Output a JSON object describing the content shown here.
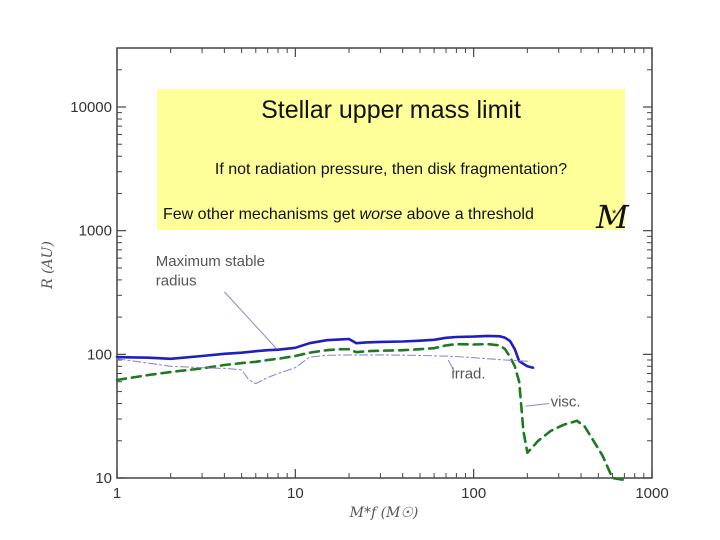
{
  "callout": {
    "title": "Stellar upper mass limit",
    "line1": "If not radiation pressure, then disk fragmentation?",
    "line2_prefix": "Few other mechanisms get ",
    "line2_emph": "worse",
    "line2_suffix": " above a threshold",
    "symbol": "M",
    "symbol_sub": "*"
  },
  "chart_data": {
    "type": "line",
    "title": "",
    "xlabel": "M*f (M☉)",
    "ylabel": "R (AU)",
    "xscale": "log",
    "yscale": "log",
    "xlim": [
      1,
      1000
    ],
    "ylim": [
      10,
      30000
    ],
    "xticks": [
      {
        "value": 1,
        "label": "1"
      },
      {
        "value": 10,
        "label": "10"
      },
      {
        "value": 100,
        "label": "100"
      },
      {
        "value": 1000,
        "label": "1000"
      }
    ],
    "yticks": [
      {
        "value": 10,
        "label": "10"
      },
      {
        "value": 100,
        "label": "100"
      },
      {
        "value": 1000,
        "label": "1000"
      },
      {
        "value": 10000,
        "label": "10000"
      }
    ],
    "annotations": [
      {
        "text": "Maximum stable",
        "x": 1.65,
        "y": 520
      },
      {
        "text": "radius",
        "x": 1.65,
        "y": 360
      },
      {
        "text": "irrad.",
        "x": 75,
        "y": 64
      },
      {
        "text": "visc.",
        "x": 270,
        "y": 38
      }
    ],
    "annotation_pointers": [
      {
        "from": [
          4.0,
          320
        ],
        "to": [
          7.8,
          112
        ]
      },
      {
        "from": [
          78,
          72
        ],
        "to": [
          72,
          90
        ]
      },
      {
        "from": [
          265,
          40
        ],
        "to": [
          195,
          38
        ]
      }
    ],
    "series": [
      {
        "style": "solid",
        "color": "#1f1fbf",
        "x": [
          1,
          1.5,
          2,
          3,
          4,
          5,
          6,
          7,
          8,
          10,
          12,
          15,
          18,
          20,
          22,
          25,
          30,
          40,
          50,
          60,
          70,
          80,
          100,
          120,
          140,
          150,
          160,
          170,
          180,
          200,
          215
        ],
        "y": [
          95,
          94,
          92,
          97,
          101,
          103,
          106,
          108,
          109,
          113,
          123,
          130,
          132,
          133,
          123,
          125,
          126,
          127,
          129,
          131,
          136,
          138,
          139,
          141,
          140,
          136,
          128,
          110,
          88,
          80,
          78
        ]
      },
      {
        "style": "dashed",
        "color": "#1f7a1f",
        "x": [
          1,
          1.5,
          2,
          3,
          4,
          5,
          6,
          7,
          8,
          10,
          12,
          15,
          18,
          20,
          22,
          25,
          30,
          40,
          50,
          60,
          70,
          80,
          100,
          120,
          140,
          150,
          160,
          170,
          180,
          190,
          200,
          230,
          270,
          320,
          380,
          420,
          470,
          530,
          600,
          700
        ],
        "y": [
          62,
          68,
          72,
          77,
          82,
          85,
          87,
          90,
          92,
          97,
          103,
          108,
          110,
          110,
          104,
          106,
          107,
          108,
          110,
          112,
          118,
          121,
          120,
          121,
          118,
          110,
          95,
          80,
          60,
          24,
          16,
          20,
          24,
          27,
          29,
          26,
          20,
          15,
          10,
          6
        ]
      },
      {
        "style": "dashdot",
        "color": "#8a8ad8",
        "x": [
          1,
          1.5,
          2,
          3,
          4,
          5,
          5.5,
          6,
          7,
          8,
          10,
          12,
          15,
          20,
          30,
          50,
          80,
          100,
          150,
          200
        ],
        "y": [
          92,
          85,
          80,
          78,
          77,
          75,
          62,
          58,
          65,
          70,
          78,
          95,
          98,
          99,
          99,
          98,
          96,
          94,
          90,
          88
        ]
      }
    ]
  }
}
